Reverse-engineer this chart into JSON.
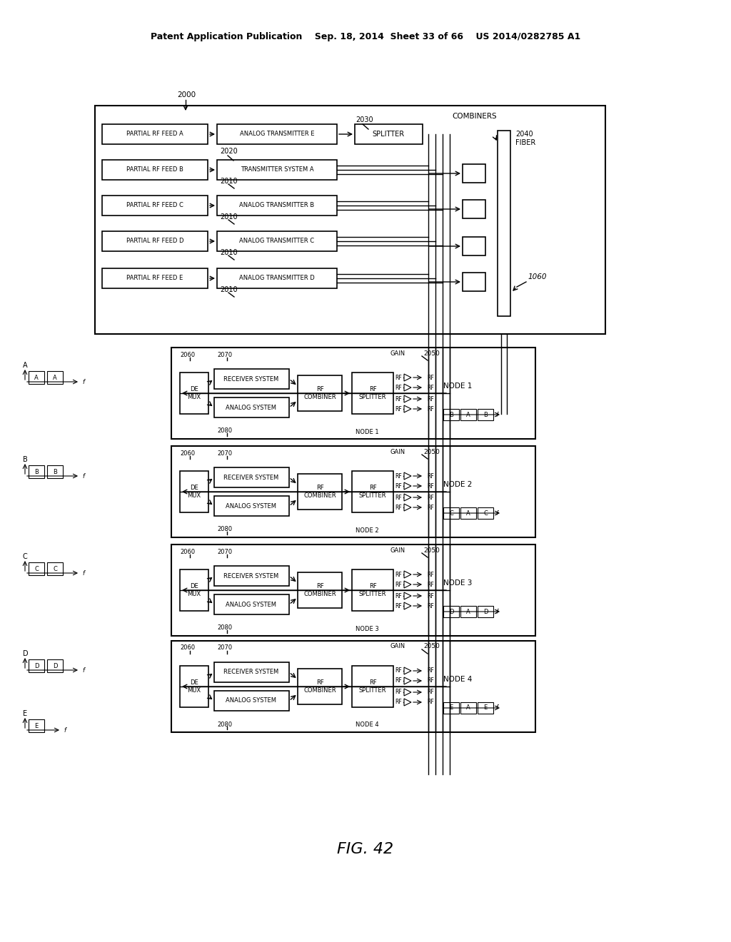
{
  "bg_color": "#ffffff",
  "header_text": "Patent Application Publication    Sep. 18, 2014  Sheet 33 of 66    US 2014/0282785 A1",
  "fig_label": "FIG. 42",
  "feed_boxes": [
    "PARTIAL RF FEED A",
    "PARTIAL RF FEED B",
    "PARTIAL RF FEED C",
    "PARTIAL RF FEED D",
    "PARTIAL RF FEED E"
  ],
  "tx_boxes": [
    "ANALOG TRANSMITTER E",
    "TRANSMITTER SYSTEM A",
    "ANALOG TRANSMITTER B",
    "ANALOG TRANSMITTER C",
    "ANALOG TRANSMITTER D"
  ],
  "node_labels": [
    "NODE 1",
    "NODE 2",
    "NODE 3",
    "NODE 4"
  ],
  "node_spectra": [
    [
      "B",
      "A",
      "B"
    ],
    [
      "C",
      "A",
      "C"
    ],
    [
      "D",
      "A",
      "D"
    ],
    [
      "E",
      "A",
      "E"
    ]
  ],
  "side_letters": [
    "A",
    "B",
    "C",
    "D",
    "E"
  ],
  "side_spectra": [
    [
      "A",
      "A"
    ],
    [
      "B",
      "B"
    ],
    [
      "C",
      "C"
    ],
    [
      "D",
      "D"
    ],
    [
      "E"
    ]
  ]
}
